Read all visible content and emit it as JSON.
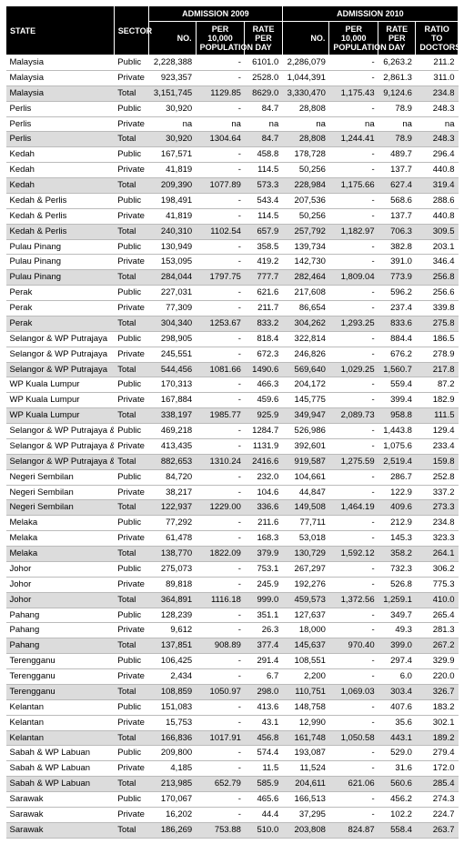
{
  "headers": {
    "state": "STATE",
    "sector": "SECTOR",
    "adm2009": "ADMISSION 2009",
    "adm2010": "ADMISSION 2010",
    "no": "NO.",
    "per10k": "PER 10,000 POPULATION",
    "rate": "RATE PER DAY",
    "ratio": "RATIO TO DOCTORS"
  },
  "colors": {
    "header_bg": "#000000",
    "header_fg": "#ffffff",
    "total_bg": "#dcdcdc",
    "grid": "#bbbbbb"
  },
  "rows": [
    {
      "state": "Malaysia",
      "sector": "Public",
      "no09": "2,228,388",
      "p09": "-",
      "r09": "6101.0",
      "no10": "2,286,079",
      "p10": "-",
      "r10": "6,263.2",
      "ratio": "211.2"
    },
    {
      "state": "Malaysia",
      "sector": "Private",
      "no09": "923,357",
      "p09": "-",
      "r09": "2528.0",
      "no10": "1,044,391",
      "p10": "-",
      "r10": "2,861.3",
      "ratio": "311.0"
    },
    {
      "state": "Malaysia",
      "sector": "Total",
      "no09": "3,151,745",
      "p09": "1129.85",
      "r09": "8629.0",
      "no10": "3,330,470",
      "p10": "1,175.43",
      "r10": "9,124.6",
      "ratio": "234.8",
      "total": true
    },
    {
      "state": "Perlis",
      "sector": "Public",
      "no09": "30,920",
      "p09": "-",
      "r09": "84.7",
      "no10": "28,808",
      "p10": "-",
      "r10": "78.9",
      "ratio": "248.3"
    },
    {
      "state": "Perlis",
      "sector": "Private",
      "no09": "na",
      "p09": "na",
      "r09": "na",
      "no10": "na",
      "p10": "na",
      "r10": "na",
      "ratio": "na"
    },
    {
      "state": "Perlis",
      "sector": "Total",
      "no09": "30,920",
      "p09": "1304.64",
      "r09": "84.7",
      "no10": "28,808",
      "p10": "1,244.41",
      "r10": "78.9",
      "ratio": "248.3",
      "total": true
    },
    {
      "state": "Kedah",
      "sector": "Public",
      "no09": "167,571",
      "p09": "-",
      "r09": "458.8",
      "no10": "178,728",
      "p10": "-",
      "r10": "489.7",
      "ratio": "296.4"
    },
    {
      "state": "Kedah",
      "sector": "Private",
      "no09": "41,819",
      "p09": "-",
      "r09": "114.5",
      "no10": "50,256",
      "p10": "-",
      "r10": "137.7",
      "ratio": "440.8"
    },
    {
      "state": "Kedah",
      "sector": "Total",
      "no09": "209,390",
      "p09": "1077.89",
      "r09": "573.3",
      "no10": "228,984",
      "p10": "1,175.66",
      "r10": "627.4",
      "ratio": "319.4",
      "total": true
    },
    {
      "state": "Kedah & Perlis",
      "sector": "Public",
      "no09": "198,491",
      "p09": "-",
      "r09": "543.4",
      "no10": "207,536",
      "p10": "-",
      "r10": "568.6",
      "ratio": "288.6"
    },
    {
      "state": "Kedah & Perlis",
      "sector": "Private",
      "no09": "41,819",
      "p09": "-",
      "r09": "114.5",
      "no10": "50,256",
      "p10": "-",
      "r10": "137.7",
      "ratio": "440.8"
    },
    {
      "state": "Kedah & Perlis",
      "sector": "Total",
      "no09": "240,310",
      "p09": "1102.54",
      "r09": "657.9",
      "no10": "257,792",
      "p10": "1,182.97",
      "r10": "706.3",
      "ratio": "309.5",
      "total": true
    },
    {
      "state": "Pulau Pinang",
      "sector": "Public",
      "no09": "130,949",
      "p09": "-",
      "r09": "358.5",
      "no10": "139,734",
      "p10": "-",
      "r10": "382.8",
      "ratio": "203.1"
    },
    {
      "state": "Pulau Pinang",
      "sector": "Private",
      "no09": "153,095",
      "p09": "-",
      "r09": "419.2",
      "no10": "142,730",
      "p10": "-",
      "r10": "391.0",
      "ratio": "346.4"
    },
    {
      "state": "Pulau Pinang",
      "sector": "Total",
      "no09": "284,044",
      "p09": "1797.75",
      "r09": "777.7",
      "no10": "282,464",
      "p10": "1,809.04",
      "r10": "773.9",
      "ratio": "256.8",
      "total": true
    },
    {
      "state": "Perak",
      "sector": "Public",
      "no09": "227,031",
      "p09": "-",
      "r09": "621.6",
      "no10": "217,608",
      "p10": "-",
      "r10": "596.2",
      "ratio": "256.6"
    },
    {
      "state": "Perak",
      "sector": "Private",
      "no09": "77,309",
      "p09": "-",
      "r09": "211.7",
      "no10": "86,654",
      "p10": "-",
      "r10": "237.4",
      "ratio": "339.8"
    },
    {
      "state": "Perak",
      "sector": "Total",
      "no09": "304,340",
      "p09": "1253.67",
      "r09": "833.2",
      "no10": "304,262",
      "p10": "1,293.25",
      "r10": "833.6",
      "ratio": "275.8",
      "total": true
    },
    {
      "state": "Selangor & WP Putrajaya",
      "sector": "Public",
      "no09": "298,905",
      "p09": "-",
      "r09": "818.4",
      "no10": "322,814",
      "p10": "-",
      "r10": "884.4",
      "ratio": "186.5"
    },
    {
      "state": "Selangor & WP Putrajaya",
      "sector": "Private",
      "no09": "245,551",
      "p09": "-",
      "r09": "672.3",
      "no10": "246,826",
      "p10": "-",
      "r10": "676.2",
      "ratio": "278.9"
    },
    {
      "state": "Selangor & WP Putrajaya",
      "sector": "Total",
      "no09": "544,456",
      "p09": "1081.66",
      "r09": "1490.6",
      "no10": "569,640",
      "p10": "1,029.25",
      "r10": "1,560.7",
      "ratio": "217.8",
      "total": true
    },
    {
      "state": "WP Kuala Lumpur",
      "sector": "Public",
      "no09": "170,313",
      "p09": "-",
      "r09": "466.3",
      "no10": "204,172",
      "p10": "-",
      "r10": "559.4",
      "ratio": "87.2"
    },
    {
      "state": "WP Kuala Lumpur",
      "sector": "Private",
      "no09": "167,884",
      "p09": "-",
      "r09": "459.6",
      "no10": "145,775",
      "p10": "-",
      "r10": "399.4",
      "ratio": "182.9"
    },
    {
      "state": "WP Kuala Lumpur",
      "sector": "Total",
      "no09": "338,197",
      "p09": "1985.77",
      "r09": "925.9",
      "no10": "349,947",
      "p10": "2,089.73",
      "r10": "958.8",
      "ratio": "111.5",
      "total": true
    },
    {
      "state": "Selangor & WP Putrajaya & WPKL",
      "sector": "Public",
      "no09": "469,218",
      "p09": "-",
      "r09": "1284.7",
      "no10": "526,986",
      "p10": "-",
      "r10": "1,443.8",
      "ratio": "129.4"
    },
    {
      "state": "Selangor & WP Putrajaya & WPKL",
      "sector": "Private",
      "no09": "413,435",
      "p09": "-",
      "r09": "1131.9",
      "no10": "392,601",
      "p10": "-",
      "r10": "1,075.6",
      "ratio": "233.4"
    },
    {
      "state": "Selangor & WP Putrajaya & WPKL",
      "sector": "Total",
      "no09": "882,653",
      "p09": "1310.24",
      "r09": "2416.6",
      "no10": "919,587",
      "p10": "1,275.59",
      "r10": "2,519.4",
      "ratio": "159.8",
      "total": true
    },
    {
      "state": "Negeri Sembilan",
      "sector": "Public",
      "no09": "84,720",
      "p09": "-",
      "r09": "232.0",
      "no10": "104,661",
      "p10": "-",
      "r10": "286.7",
      "ratio": "252.8"
    },
    {
      "state": "Negeri Sembilan",
      "sector": "Private",
      "no09": "38,217",
      "p09": "-",
      "r09": "104.6",
      "no10": "44,847",
      "p10": "-",
      "r10": "122.9",
      "ratio": "337.2"
    },
    {
      "state": "Negeri Sembilan",
      "sector": "Total",
      "no09": "122,937",
      "p09": "1229.00",
      "r09": "336.6",
      "no10": "149,508",
      "p10": "1,464.19",
      "r10": "409.6",
      "ratio": "273.3",
      "total": true
    },
    {
      "state": "Melaka",
      "sector": "Public",
      "no09": "77,292",
      "p09": "-",
      "r09": "211.6",
      "no10": "77,711",
      "p10": "-",
      "r10": "212.9",
      "ratio": "234.8"
    },
    {
      "state": "Melaka",
      "sector": "Private",
      "no09": "61,478",
      "p09": "-",
      "r09": "168.3",
      "no10": "53,018",
      "p10": "-",
      "r10": "145.3",
      "ratio": "323.3"
    },
    {
      "state": "Melaka",
      "sector": "Total",
      "no09": "138,770",
      "p09": "1822.09",
      "r09": "379.9",
      "no10": "130,729",
      "p10": "1,592.12",
      "r10": "358.2",
      "ratio": "264.1",
      "total": true
    },
    {
      "state": "Johor",
      "sector": "Public",
      "no09": "275,073",
      "p09": "-",
      "r09": "753.1",
      "no10": "267,297",
      "p10": "-",
      "r10": "732.3",
      "ratio": "306.2"
    },
    {
      "state": "Johor",
      "sector": "Private",
      "no09": "89,818",
      "p09": "-",
      "r09": "245.9",
      "no10": "192,276",
      "p10": "-",
      "r10": "526.8",
      "ratio": "775.3"
    },
    {
      "state": "Johor",
      "sector": "Total",
      "no09": "364,891",
      "p09": "1116.18",
      "r09": "999.0",
      "no10": "459,573",
      "p10": "1,372.56",
      "r10": "1,259.1",
      "ratio": "410.0",
      "total": true
    },
    {
      "state": "Pahang",
      "sector": "Public",
      "no09": "128,239",
      "p09": "-",
      "r09": "351.1",
      "no10": "127,637",
      "p10": "-",
      "r10": "349.7",
      "ratio": "265.4"
    },
    {
      "state": "Pahang",
      "sector": "Private",
      "no09": "9,612",
      "p09": "-",
      "r09": "26.3",
      "no10": "18,000",
      "p10": "-",
      "r10": "49.3",
      "ratio": "281.3"
    },
    {
      "state": "Pahang",
      "sector": "Total",
      "no09": "137,851",
      "p09": "908.89",
      "r09": "377.4",
      "no10": "145,637",
      "p10": "970.40",
      "r10": "399.0",
      "ratio": "267.2",
      "total": true
    },
    {
      "state": "Terengganu",
      "sector": "Public",
      "no09": "106,425",
      "p09": "-",
      "r09": "291.4",
      "no10": "108,551",
      "p10": "-",
      "r10": "297.4",
      "ratio": "329.9"
    },
    {
      "state": "Terengganu",
      "sector": "Private",
      "no09": "2,434",
      "p09": "-",
      "r09": "6.7",
      "no10": "2,200",
      "p10": "-",
      "r10": "6.0",
      "ratio": "220.0"
    },
    {
      "state": "Terengganu",
      "sector": "Total",
      "no09": "108,859",
      "p09": "1050.97",
      "r09": "298.0",
      "no10": "110,751",
      "p10": "1,069.03",
      "r10": "303.4",
      "ratio": "326.7",
      "total": true
    },
    {
      "state": "Kelantan",
      "sector": "Public",
      "no09": "151,083",
      "p09": "-",
      "r09": "413.6",
      "no10": "148,758",
      "p10": "-",
      "r10": "407.6",
      "ratio": "183.2"
    },
    {
      "state": "Kelantan",
      "sector": "Private",
      "no09": "15,753",
      "p09": "-",
      "r09": "43.1",
      "no10": "12,990",
      "p10": "-",
      "r10": "35.6",
      "ratio": "302.1"
    },
    {
      "state": "Kelantan",
      "sector": "Total",
      "no09": "166,836",
      "p09": "1017.91",
      "r09": "456.8",
      "no10": "161,748",
      "p10": "1,050.58",
      "r10": "443.1",
      "ratio": "189.2",
      "total": true
    },
    {
      "state": "Sabah & WP Labuan",
      "sector": "Public",
      "no09": "209,800",
      "p09": "-",
      "r09": "574.4",
      "no10": "193,087",
      "p10": "-",
      "r10": "529.0",
      "ratio": "279.4"
    },
    {
      "state": "Sabah & WP Labuan",
      "sector": "Private",
      "no09": "4,185",
      "p09": "-",
      "r09": "11.5",
      "no10": "11,524",
      "p10": "-",
      "r10": "31.6",
      "ratio": "172.0"
    },
    {
      "state": "Sabah & WP Labuan",
      "sector": "Total",
      "no09": "213,985",
      "p09": "652.79",
      "r09": "585.9",
      "no10": "204,611",
      "p10": "621.06",
      "r10": "560.6",
      "ratio": "285.4",
      "total": true
    },
    {
      "state": "Sarawak",
      "sector": "Public",
      "no09": "170,067",
      "p09": "-",
      "r09": "465.6",
      "no10": "166,513",
      "p10": "-",
      "r10": "456.2",
      "ratio": "274.3"
    },
    {
      "state": "Sarawak",
      "sector": "Private",
      "no09": "16,202",
      "p09": "-",
      "r09": "44.4",
      "no10": "37,295",
      "p10": "-",
      "r10": "102.2",
      "ratio": "224.7"
    },
    {
      "state": "Sarawak",
      "sector": "Total",
      "no09": "186,269",
      "p09": "753.88",
      "r09": "510.0",
      "no10": "203,808",
      "p10": "824.87",
      "r10": "558.4",
      "ratio": "263.7",
      "total": true
    }
  ]
}
